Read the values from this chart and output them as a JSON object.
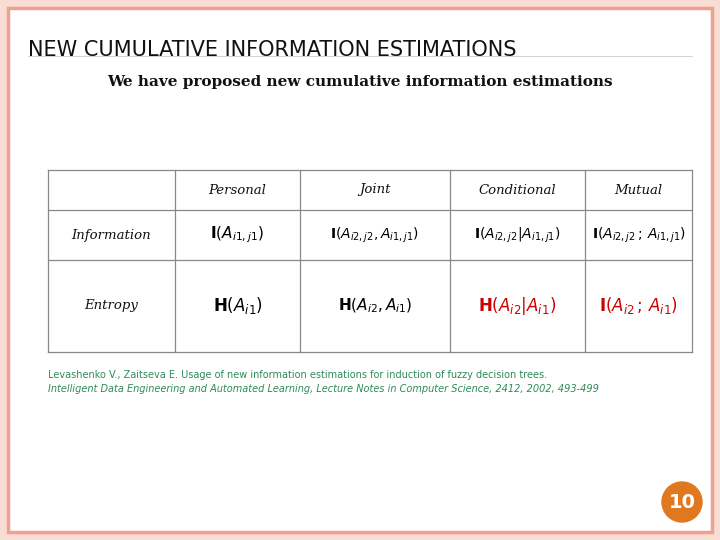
{
  "title": "NEW CUMULATIVE INFORMATION ESTIMATIONS",
  "subtitle": "We have proposed new cumulative information estimations",
  "bg_color": "#ffffff",
  "border_color": "#f0a090",
  "slide_bg": "#f8ddd5",
  "title_color": "#111111",
  "subtitle_color": "#111111",
  "ref_color": "#2e8b57",
  "page_number": "10",
  "page_circle_color": "#e07820",
  "col_headers": [
    "Personal",
    "Joint",
    "Conditional",
    "Mutual"
  ],
  "row_labels": [
    "Information",
    "Entropy"
  ],
  "table_border_color": "#888888",
  "ref_line1": "Levashenko V., Zaitseva E. Usage of new information estimations for induction of fuzzy decision trees.",
  "ref_line2": "Intelligent Data Engineering and Automated Learning, Lecture Notes in Computer Science, 2412, 2002, 493-499"
}
